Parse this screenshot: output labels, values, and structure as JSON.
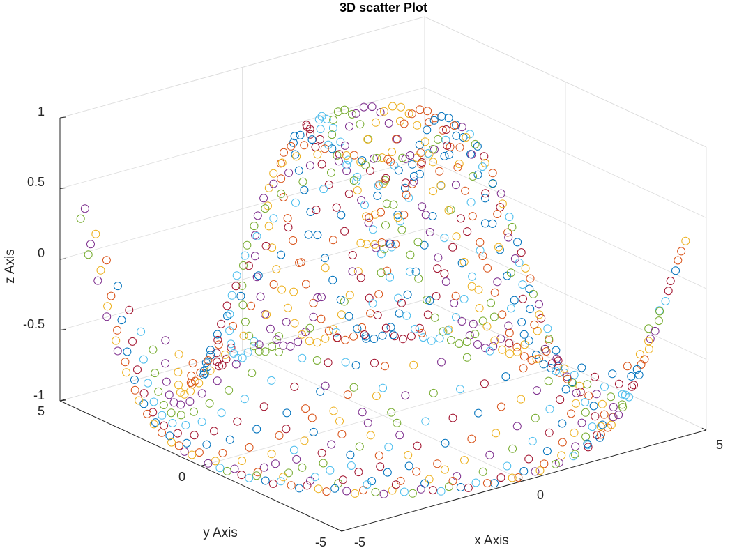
{
  "chart_data": {
    "type": "scatter",
    "title": "3D scatter Plot",
    "xlabel": "x Axis",
    "ylabel": "y Axis",
    "zlabel": "z Axis",
    "xlim": [
      -5,
      5
    ],
    "ylim": [
      -5,
      5
    ],
    "zlim": [
      -1,
      1
    ],
    "x_ticks": [
      "-5",
      "0",
      "5"
    ],
    "y_ticks": [
      "-5",
      "0",
      "5"
    ],
    "z_ticks": [
      "-1",
      "-0.5",
      "0",
      "0.5",
      "1"
    ],
    "grid": true,
    "box": true,
    "view": "3d-isometric",
    "marker": "open-circle",
    "surface": "z = sin(sqrt(x^2 + y^2))",
    "sampling": {
      "rings": "r = 0.2 to 7.0 step 0.2",
      "points_per_ring": "proportional to r",
      "kept_within": "|x| <= 5, |y| <= 5"
    },
    "series_colors": [
      "#0072bd",
      "#d95319",
      "#edb120",
      "#7e2f8e",
      "#77ac30",
      "#4dbeee",
      "#a2142f"
    ]
  }
}
